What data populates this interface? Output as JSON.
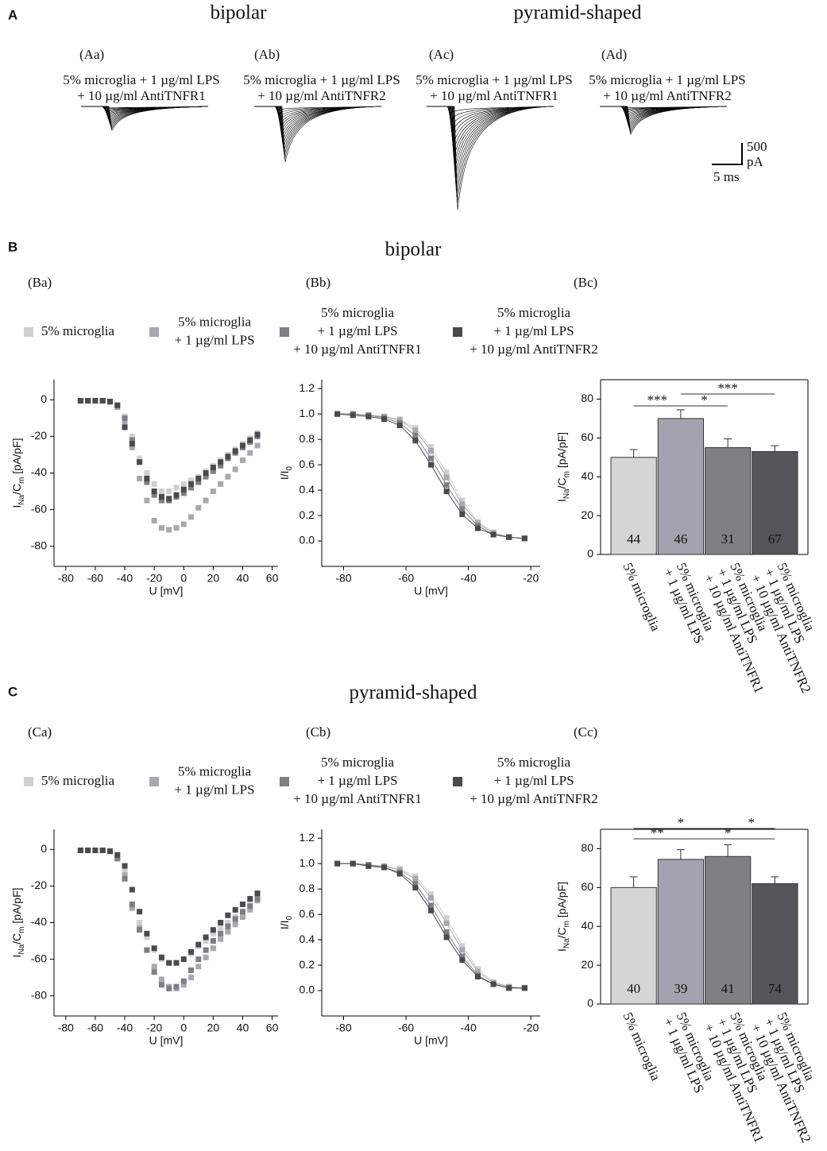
{
  "panel_letters": [
    "A",
    "B",
    "C"
  ],
  "headers": [
    "bipolar",
    "pyramid-shaped",
    "bipolar",
    "pyramid-shaped"
  ],
  "traces": [
    {
      "label": "(Aa)",
      "caption": [
        "5% microglia + 1 µg/ml LPS",
        "+ 10 µg/ml AntiTNFR1"
      ]
    },
    {
      "label": "(Ab)",
      "caption": [
        "5% microglia + 1 µg/ml LPS",
        "+ 10 µg/ml AntiTNFR2"
      ]
    },
    {
      "label": "(Ac)",
      "caption": [
        "5% microglia + 1 µg/ml LPS",
        "+ 10 µg/ml AntiTNFR1"
      ]
    },
    {
      "label": "(Ad)",
      "caption": [
        "5% microglia + 1 µg/ml LPS",
        "+ 10 µg/ml AntiTNFR2"
      ]
    }
  ],
  "scale_bar": {
    "amplitude": 500,
    "amplitude_unit": "pA",
    "time": "5 ms"
  },
  "chart_data": [
    {
      "type": "scatter",
      "panel": "(Ba)",
      "xlabel": "U [mV]",
      "ylabel": [
        "I",
        "Na",
        "/C",
        "m",
        " [pA/pF]"
      ],
      "x": [
        -70,
        -65,
        -60,
        -55,
        -50,
        -45,
        -40,
        -35,
        -30,
        -25,
        -20,
        -15,
        -10,
        -5,
        0,
        5,
        10,
        15,
        20,
        25,
        30,
        35,
        40,
        45,
        50
      ],
      "xlim": [
        -88,
        64
      ],
      "xticks": [
        -80,
        -60,
        -40,
        -20,
        0,
        20,
        40,
        60
      ],
      "ylim": [
        -91,
        11
      ],
      "yticks": [
        0,
        -20,
        -40,
        -60,
        -80
      ],
      "series": [
        {
          "name": [
            "5% microglia"
          ],
          "color": "#d0d0d0",
          "values": [
            -0.5,
            -0.5,
            -0.5,
            -0.5,
            -1,
            -3,
            -9,
            -20,
            -32,
            -40,
            -46,
            -50,
            -50,
            -48,
            -46,
            -44,
            -42,
            -39,
            -36,
            -33,
            -30,
            -27,
            -24,
            -21,
            -18
          ]
        },
        {
          "name": [
            "5% microglia",
            "+ 1 µg/ml LPS"
          ],
          "color": "#a8a8b0",
          "values": [
            -0.5,
            -0.5,
            -0.5,
            -0.5,
            -1,
            -4,
            -12,
            -26,
            -43,
            -55,
            -66,
            -70,
            -71,
            -70,
            -68,
            -64,
            -59,
            -55,
            -50,
            -46,
            -42,
            -38,
            -33,
            -29,
            -25
          ]
        },
        {
          "name": [
            "5% microglia",
            "+ 1 µg/ml LPS",
            "+ 10 µg/ml AntiTNFR1"
          ],
          "color": "#7e7e84",
          "values": [
            -0.5,
            -0.5,
            -0.5,
            -0.5,
            -1,
            -3,
            -10,
            -22,
            -34,
            -45,
            -52,
            -55,
            -55,
            -53,
            -51,
            -48,
            -45,
            -42,
            -39,
            -36,
            -32,
            -29,
            -26,
            -23,
            -20
          ]
        },
        {
          "name": [
            "5% microglia",
            "+ 1 µg/ml LPS",
            "+ 10 µg/ml AntiTNFR2"
          ],
          "color": "#4a4a4e",
          "values": [
            -0.5,
            -0.5,
            -0.5,
            -0.5,
            -1,
            -3,
            -15,
            -24,
            -34,
            -43,
            -50,
            -53,
            -54,
            -52,
            -49,
            -46,
            -43,
            -40,
            -37,
            -34,
            -31,
            -28,
            -25,
            -22,
            -19
          ]
        }
      ]
    },
    {
      "type": "line",
      "panel": "(Bb)",
      "xlabel": "U [mV]",
      "ylabel": [
        "I/I",
        "0"
      ],
      "x": [
        -82,
        -77,
        -72,
        -67,
        -62,
        -57,
        -52,
        -47,
        -42,
        -37,
        -32,
        -27,
        -22
      ],
      "xlim": [
        -87,
        -17
      ],
      "xticks": [
        -80,
        -60,
        -40,
        -20
      ],
      "ylim": [
        -0.2,
        1.27
      ],
      "yticks": [
        {
          "value": 0,
          "label": "0.0"
        },
        {
          "value": 0.2,
          "label": "0.2"
        },
        {
          "value": 0.4,
          "label": "0.4"
        },
        {
          "value": 0.6,
          "label": "0.6"
        },
        {
          "value": 0.8,
          "label": "0.8"
        },
        {
          "value": 1,
          "label": "1.0"
        },
        {
          "value": 1.2,
          "label": "1.2"
        }
      ],
      "series": [
        {
          "color": "#d0d0d0",
          "values": [
            1,
            1,
            0.99,
            0.98,
            0.96,
            0.89,
            0.74,
            0.54,
            0.32,
            0.15,
            0.07,
            0.03,
            0.02
          ]
        },
        {
          "color": "#a8a8b0",
          "values": [
            1,
            1,
            0.99,
            0.98,
            0.95,
            0.87,
            0.71,
            0.5,
            0.29,
            0.14,
            0.06,
            0.03,
            0.02
          ]
        },
        {
          "color": "#7e7e84",
          "values": [
            1,
            1,
            0.99,
            0.97,
            0.93,
            0.83,
            0.65,
            0.44,
            0.25,
            0.12,
            0.05,
            0.03,
            0.02
          ]
        },
        {
          "color": "#4a4a4e",
          "values": [
            1,
            0.99,
            0.98,
            0.96,
            0.91,
            0.79,
            0.6,
            0.39,
            0.21,
            0.1,
            0.05,
            0.03,
            0.02
          ]
        }
      ]
    },
    {
      "type": "bar",
      "panel": "(Bc)",
      "ylabel": [
        "I",
        "Na",
        "/C",
        "m",
        " [pA/pF]"
      ],
      "categories": [
        [
          "5% microglia"
        ],
        [
          "5% microglia",
          "+ 1 µg/ml LPS"
        ],
        [
          "5% microglia",
          "+ 1 µg/ml LPS",
          "+ 10 µg/ml AntiTNFR1"
        ],
        [
          "5% microglia",
          "+ 1 µg/ml LPS",
          "+ 10 µg/ml AntiTNFR2"
        ]
      ],
      "values": [
        50,
        70,
        55,
        53
      ],
      "errors": [
        4,
        4.5,
        4.5,
        3
      ],
      "n": [
        44,
        46,
        31,
        67
      ],
      "colors": [
        "#d4d6d6",
        "#a4a2ae",
        "#7f7f86",
        "#56565a"
      ],
      "ylim": [
        0,
        90
      ],
      "yticks": [
        0,
        20,
        40,
        60,
        80
      ],
      "significance": [
        "***",
        "*",
        "***"
      ]
    },
    {
      "type": "scatter",
      "panel": "(Ca)",
      "xlabel": "U [mV]",
      "ylabel": [
        "I",
        "Na",
        "/C",
        "m",
        " [pA/pF]"
      ],
      "x": [
        -70,
        -65,
        -60,
        -55,
        -50,
        -45,
        -40,
        -35,
        -30,
        -25,
        -20,
        -15,
        -10,
        -5,
        0,
        5,
        10,
        15,
        20,
        25,
        30,
        35,
        40,
        45,
        50
      ],
      "xlim": [
        -88,
        64
      ],
      "xticks": [
        -80,
        -60,
        -40,
        -20,
        0,
        20,
        40,
        60
      ],
      "ylim": [
        -91,
        11
      ],
      "yticks": [
        0,
        -20,
        -40,
        -60,
        -80
      ],
      "series": [
        {
          "name": [
            "5% microglia"
          ],
          "color": "#d0d0d0",
          "values": [
            -0.5,
            -0.5,
            -0.5,
            -0.5,
            -1,
            -4,
            -12,
            -30,
            -40,
            -48,
            -55,
            -60,
            -62,
            -62,
            -60,
            -57,
            -53,
            -50,
            -46,
            -43,
            -40,
            -37,
            -34,
            -30,
            -26
          ]
        },
        {
          "name": [
            "5% microglia",
            "+ 1 µg/ml LPS"
          ],
          "color": "#a8a8b0",
          "values": [
            -0.5,
            -0.5,
            -0.5,
            -0.5,
            -1,
            -5,
            -14,
            -32,
            -43,
            -55,
            -64,
            -71,
            -75,
            -76,
            -74,
            -70,
            -64,
            -59,
            -54,
            -49,
            -45,
            -41,
            -37,
            -33,
            -28
          ]
        },
        {
          "name": [
            "5% microglia",
            "+ 1 µg/ml LPS",
            "+ 10 µg/ml AntiTNFR1"
          ],
          "color": "#7e7e84",
          "values": [
            -0.5,
            -0.5,
            -0.5,
            -0.5,
            -1,
            -5,
            -16,
            -30,
            -44,
            -55,
            -67,
            -74,
            -76,
            -75,
            -72,
            -66,
            -60,
            -55,
            -50,
            -46,
            -42,
            -38,
            -34,
            -31,
            -27
          ]
        },
        {
          "name": [
            "5% microglia",
            "+ 1 µg/ml LPS",
            "+ 10 µg/ml AntiTNFR2"
          ],
          "color": "#4a4a4e",
          "values": [
            -0.5,
            -0.5,
            -0.5,
            -0.5,
            -1,
            -3,
            -9,
            -22,
            -34,
            -46,
            -54,
            -59,
            -62,
            -62,
            -60,
            -56,
            -52,
            -48,
            -44,
            -40,
            -36,
            -33,
            -30,
            -27,
            -24
          ]
        }
      ]
    },
    {
      "type": "line",
      "panel": "(Cb)",
      "xlabel": "U [mV]",
      "ylabel": [
        "I/I",
        "0"
      ],
      "x": [
        -82,
        -77,
        -72,
        -67,
        -62,
        -57,
        -52,
        -47,
        -42,
        -37,
        -32,
        -27,
        -22
      ],
      "xlim": [
        -87,
        -17
      ],
      "xticks": [
        -80,
        -60,
        -40,
        -20
      ],
      "ylim": [
        -0.2,
        1.27
      ],
      "yticks": [
        {
          "value": 0,
          "label": "0.0"
        },
        {
          "value": 0.2,
          "label": "0.2"
        },
        {
          "value": 0.4,
          "label": "0.4"
        },
        {
          "value": 0.6,
          "label": "0.6"
        },
        {
          "value": 0.8,
          "label": "0.8"
        },
        {
          "value": 1,
          "label": "1.0"
        },
        {
          "value": 1.2,
          "label": "1.2"
        }
      ],
      "series": [
        {
          "color": "#d0d0d0",
          "values": [
            1,
            1,
            0.99,
            0.98,
            0.96,
            0.9,
            0.76,
            0.57,
            0.35,
            0.17,
            0.07,
            0.03,
            0.02
          ]
        },
        {
          "color": "#a8a8b0",
          "values": [
            1,
            1,
            0.99,
            0.98,
            0.95,
            0.88,
            0.73,
            0.53,
            0.32,
            0.15,
            0.06,
            0.03,
            0.02
          ]
        },
        {
          "color": "#7e7e84",
          "values": [
            1,
            1,
            0.99,
            0.97,
            0.93,
            0.84,
            0.67,
            0.46,
            0.27,
            0.12,
            0.05,
            0.02,
            0.02
          ]
        },
        {
          "color": "#4a4a4e",
          "values": [
            1,
            1,
            0.98,
            0.97,
            0.92,
            0.81,
            0.63,
            0.42,
            0.24,
            0.11,
            0.05,
            0.02,
            0.02
          ]
        }
      ]
    },
    {
      "type": "bar",
      "panel": "(Cc)",
      "ylabel": [
        "I",
        "Na",
        "/C",
        "m",
        " [pA/pF]"
      ],
      "categories": [
        [
          "5% microglia"
        ],
        [
          "5% microglia",
          "+ 1 µg/ml LPS"
        ],
        [
          "5% microglia",
          "+ 1 µg/ml LPS",
          "+ 10 µg/ml AntiTNFR1"
        ],
        [
          "5% microglia",
          "+ 1 µg/ml LPS",
          "+ 10 µg/ml AntiTNFR2"
        ]
      ],
      "values": [
        60,
        74.5,
        76,
        62
      ],
      "errors": [
        5.5,
        5,
        6,
        3.5
      ],
      "n": [
        40,
        39,
        41,
        74
      ],
      "colors": [
        "#d4d6d6",
        "#a4a2ae",
        "#7f7f86",
        "#56565a"
      ],
      "ylim": [
        0,
        90
      ],
      "yticks": [
        0,
        20,
        40,
        60,
        80
      ],
      "significance": [
        "*",
        "*",
        "**",
        "*"
      ]
    }
  ]
}
